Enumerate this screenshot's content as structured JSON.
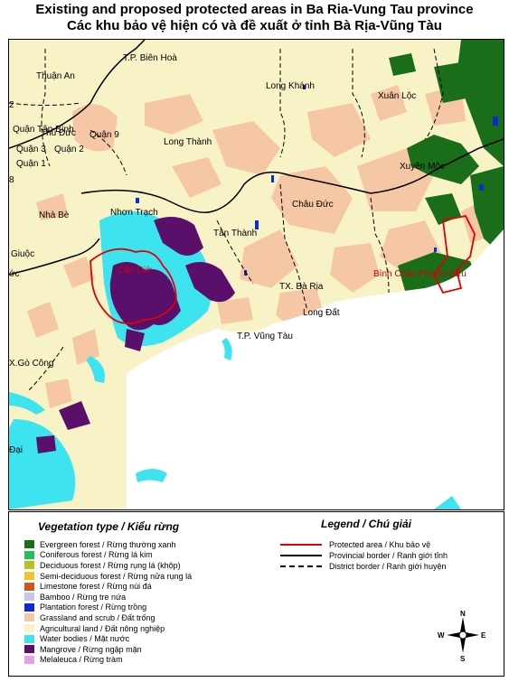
{
  "title": {
    "line1": "Existing and proposed protected areas in Ba Ria-Vung Tau province",
    "line2": "Các khu bảo vệ hiện có và đề xuất ở tỉnh Bà Rịa-Vũng Tàu"
  },
  "map": {
    "place_labels": [
      {
        "id": "thuan-an",
        "text": "Thuận An"
      },
      {
        "id": "bien-hoa",
        "text": "T.P. Biên Hoà"
      },
      {
        "id": "long-khanh",
        "text": "Long Khánh"
      },
      {
        "id": "xuan-loc",
        "text": "Xuân Lộc"
      },
      {
        "id": "thu-duc",
        "text": "Thủ Đức"
      },
      {
        "id": "quan-tan-binh",
        "text": "Quận Tân Bình"
      },
      {
        "id": "quan-9",
        "text": "Quận 9"
      },
      {
        "id": "quan-3",
        "text": "Quận 3"
      },
      {
        "id": "quan-2",
        "text": "Quận 2"
      },
      {
        "id": "quan-1",
        "text": "Quận 1"
      },
      {
        "id": "long-thanh",
        "text": "Long Thành"
      },
      {
        "id": "xuyen-moc",
        "text": "Xuyên Mộc"
      },
      {
        "id": "nha-be",
        "text": "Nhà Bè"
      },
      {
        "id": "nhon-trach",
        "text": "Nhơn Trạch"
      },
      {
        "id": "chau-duc",
        "text": "Châu Đức"
      },
      {
        "id": "tan-thanh",
        "text": "Tân Thành"
      },
      {
        "id": "giuoc",
        "text": "Giuộc"
      },
      {
        "id": "oc",
        "text": "ớc"
      },
      {
        "id": "tx-ba-ria",
        "text": "TX. Bà Rịa"
      },
      {
        "id": "long-dat",
        "text": "Long Đất"
      },
      {
        "id": "tp-vung-tau",
        "text": "T.P. Vũng Tàu"
      },
      {
        "id": "go-cong",
        "text": "X.Gò Công"
      },
      {
        "id": "dai",
        "text": "Đại"
      },
      {
        "id": "edge-2",
        "text": "2"
      },
      {
        "id": "edge-8",
        "text": "8"
      }
    ],
    "protected_area_labels": [
      {
        "id": "can-gio",
        "text": "Cần Giờ"
      },
      {
        "id": "binh-chau",
        "text": "Bình Châu-Phước Bửu"
      }
    ]
  },
  "vegetation": {
    "title": "Vegetation type / Kiểu rừng",
    "items": [
      {
        "label": "Evergreen forest / Rừng thường xanh",
        "color": "#1a6e1a"
      },
      {
        "label": "Coniferous forest / Rừng lá kim",
        "color": "#22c05a"
      },
      {
        "label": "Deciduous forest / Rừng rụng lá (khộp)",
        "color": "#b8c11d"
      },
      {
        "label": "Semi-deciduous forest / Rừng nửa rụng lá",
        "color": "#f1c232"
      },
      {
        "label": "Limestone forest / Rừng núi đá",
        "color": "#d2561c"
      },
      {
        "label": "Bamboo / Rừng tre nứa",
        "color": "#c9c6ee"
      },
      {
        "label": "Plantation forest / Rừng trồng",
        "color": "#0b2bd6"
      },
      {
        "label": "Grassland and scrub / Đất trống",
        "color": "#f6c7a4"
      },
      {
        "label": "Agricultural land / Đất nông nghiệp",
        "color": "#f8f2c7"
      },
      {
        "label": "Water bodies / Mặt nước",
        "color": "#3ee3f0"
      },
      {
        "label": "Mangrove / Rừng ngập mặn",
        "color": "#5a0f6b"
      },
      {
        "label": "Melaleuca / Rừng tràm",
        "color": "#e89de6"
      }
    ]
  },
  "legend": {
    "title": "Legend / Chú giải",
    "items": [
      {
        "label": "Protected area / Khu bảo vệ",
        "style": "protected",
        "color": "#e00000"
      },
      {
        "label": "Provincial border / Ranh giới tỉnh",
        "style": "provincial",
        "color": "#000000"
      },
      {
        "label": "District border / Ranh giới huyện",
        "style": "district",
        "color": "#000000"
      }
    ]
  },
  "compass": {
    "n": "N",
    "s": "S",
    "e": "E",
    "w": "W"
  }
}
